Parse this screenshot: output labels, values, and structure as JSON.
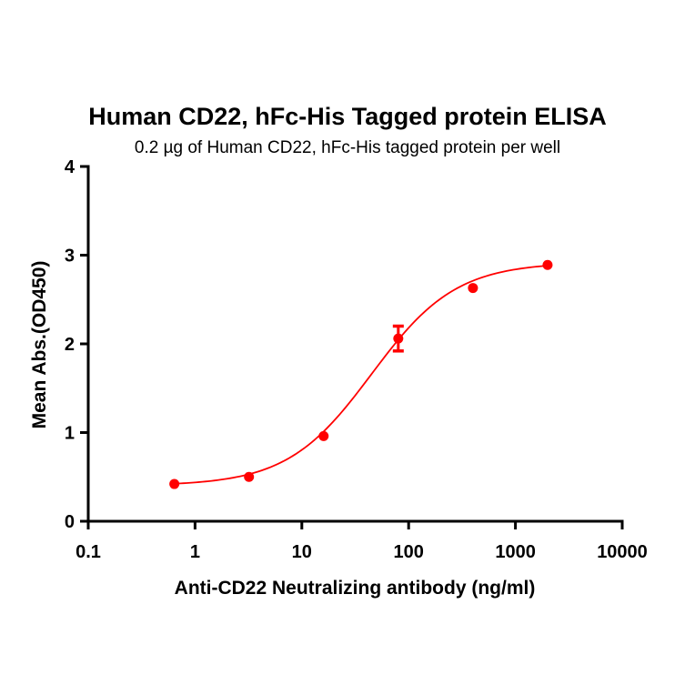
{
  "chart_data": {
    "type": "scatter",
    "title": "Human CD22,  hFc-His Tagged protein ELISA",
    "subtitle": "0.2 µg of Human CD22, hFc-His tagged protein per well",
    "xlabel": "Anti-CD22 Neutralizing antibody (ng/ml)",
    "ylabel": "Mean Abs.(OD450)",
    "xscale": "log",
    "xlim": [
      0.1,
      10000
    ],
    "ylim": [
      0,
      4
    ],
    "xticks": [
      "0.1",
      "1",
      "10",
      "100",
      "1000",
      "10000"
    ],
    "yticks": [
      "0",
      "1",
      "2",
      "3",
      "4"
    ],
    "grid": false,
    "legend": null,
    "series": [
      {
        "name": "Human CD22, hFc-His",
        "color": "#ff0000",
        "x": [
          0.64,
          3.2,
          16,
          80,
          400,
          2000
        ],
        "y": [
          0.42,
          0.5,
          0.96,
          2.06,
          2.63,
          2.89
        ],
        "error": [
          0,
          0,
          0,
          0.14,
          0,
          0
        ],
        "fit": {
          "model": "4PL",
          "bottom": 0.4,
          "top": 2.92,
          "ec50": 45,
          "hill": 1.1
        }
      }
    ]
  }
}
